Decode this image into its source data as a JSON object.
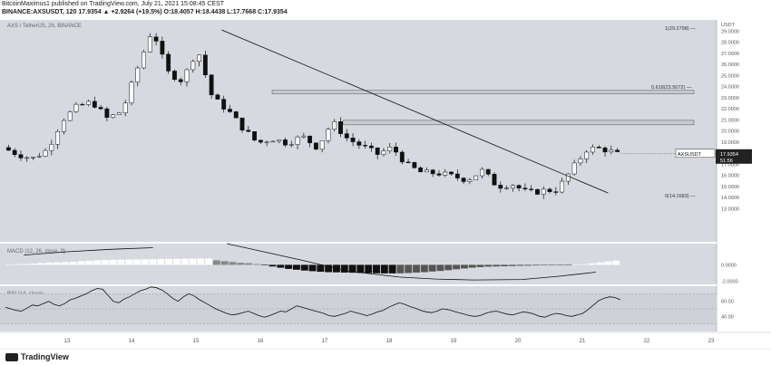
{
  "header": {
    "line1": "BitcoinMaximus1 published on TradingView.com, July 21, 2021 15:08:45 CEST",
    "line2": "BINANCE:AXSUSDT, 120  17.9354  ▲ +2.9264 (+19.5%)  O:18.4057  H:18.4438  L:17.7668  C:17.9354"
  },
  "chart_data": [
    {
      "type": "candlestick",
      "title": "AXS / TetherUS, 2h, BINANCE",
      "ylabel": "USDT",
      "ylim": [
        10.0,
        30.0
      ],
      "grid": false,
      "x_tick_labels": [
        "13",
        "14",
        "15",
        "16",
        "17",
        "18",
        "19",
        "20",
        "21",
        "22",
        "23"
      ],
      "y_tick_labels": [
        "29.0000",
        "28.0000",
        "27.0000",
        "26.0000",
        "25.0000",
        "24.0000",
        "23.0000",
        "22.0000",
        "21.0000",
        "20.0000",
        "19.0000",
        "18.0000",
        "17.0000",
        "16.0000",
        "15.0000",
        "14.0000",
        "13.0000"
      ],
      "price_path": [
        18.5,
        17.9,
        17.5,
        18.3,
        21.0,
        22.2,
        22.6,
        21.1,
        21.8,
        25.6,
        29.2,
        25.3,
        24.5,
        27.4,
        23.0,
        21.9,
        20.3,
        18.9,
        19.3,
        18.9,
        19.5,
        18.5,
        20.8,
        19.3,
        18.6,
        17.9,
        18.5,
        16.9,
        16.2,
        16.2,
        15.9,
        15.6,
        16.4,
        15.0,
        15.2,
        14.4,
        14.6,
        14.7,
        16.6,
        18.4,
        18.4,
        17.9
      ],
      "trendline": {
        "from": [
          15.4,
          29.1
        ],
        "to": [
          21.4,
          14.4
        ]
      },
      "resistance_zones": [
        {
          "label": "0.618(23.5072)",
          "low": 23.35,
          "high": 23.65
        },
        {
          "label": "",
          "low": 20.55,
          "high": 20.95
        }
      ],
      "fib_levels": [
        {
          "label": "1(29.2798)",
          "value": 29.2798
        },
        {
          "label": "0(14.1683)",
          "value": 14.1683
        }
      ],
      "last_price": {
        "symbol": "AXSUSDT",
        "value": "17.9354",
        "countdown": "51:56"
      }
    },
    {
      "type": "bar",
      "title": "MACD (12, 26, close, 9)",
      "y_tick_labels": [
        "0.0000",
        "-2.0000"
      ],
      "ylim": [
        -2.4,
        2.6
      ],
      "histogram": [
        0.05,
        0.08,
        0.1,
        0.15,
        0.22,
        0.28,
        0.3,
        0.35,
        0.4,
        0.45,
        0.5,
        0.55,
        0.6,
        0.62,
        0.64,
        0.65,
        0.66,
        0.68,
        0.7,
        0.72,
        0.73,
        0.74,
        0.75,
        0.76,
        0.77,
        0.78,
        0.55,
        0.45,
        0.35,
        0.25,
        0.2,
        0.1,
        -0.05,
        -0.2,
        -0.35,
        -0.5,
        -0.6,
        -0.7,
        -0.78,
        -0.85,
        -0.9,
        -0.92,
        -0.95,
        -0.97,
        -1.0,
        -1.02,
        -1.04,
        -1.05,
        -1.05,
        -1.04,
        -1.0,
        -0.95,
        -0.9,
        -0.82,
        -0.75,
        -0.66,
        -0.55,
        -0.45,
        -0.35,
        -0.28,
        -0.22,
        -0.2,
        -0.18,
        -0.15,
        -0.12,
        -0.1,
        -0.08,
        -0.06,
        -0.05,
        -0.04,
        -0.02,
        0.0,
        0.08,
        0.18,
        0.3,
        0.42,
        0.52
      ],
      "signal_line_segments": [
        [
          [
            0.03,
            1.2
          ],
          [
            0.1,
            1.6
          ],
          [
            0.17,
            1.9
          ],
          [
            0.24,
            2.1
          ]
        ],
        [
          [
            0.36,
            2.6
          ],
          [
            0.42,
            1.6
          ],
          [
            0.48,
            0.6
          ],
          [
            0.56,
            -0.8
          ],
          [
            0.64,
            -1.5
          ],
          [
            0.7,
            -1.75
          ],
          [
            0.76,
            -1.85
          ],
          [
            0.84,
            -1.8
          ],
          [
            0.9,
            -1.4
          ],
          [
            0.96,
            -0.9
          ]
        ]
      ]
    },
    {
      "type": "line",
      "title": "RSI (14, close)",
      "y_tick_labels": [
        "60.00",
        "40.00"
      ],
      "ylim": [
        20,
        80
      ],
      "levels": [
        70,
        50,
        30
      ],
      "values": [
        52,
        50,
        48,
        47,
        51,
        55,
        54,
        57,
        60,
        56,
        54,
        57,
        62,
        64,
        67,
        70,
        74,
        77,
        76,
        68,
        60,
        58,
        63,
        66,
        70,
        74,
        76,
        79,
        78,
        75,
        70,
        64,
        60,
        66,
        70,
        67,
        62,
        58,
        54,
        50,
        47,
        44,
        42,
        43,
        45,
        47,
        44,
        41,
        39,
        41,
        44,
        47,
        46,
        50,
        54,
        52,
        50,
        48,
        46,
        44,
        41,
        40,
        42,
        44,
        47,
        45,
        43,
        41,
        43,
        46,
        48,
        52,
        55,
        58,
        56,
        53,
        51,
        48,
        46,
        45,
        47,
        50,
        49,
        47,
        45,
        43,
        41,
        40,
        41,
        44,
        46,
        47,
        45,
        43,
        42,
        44,
        46,
        45,
        43,
        40,
        39,
        42,
        44,
        43,
        41,
        40,
        42,
        44,
        49,
        55,
        61,
        64,
        66,
        65,
        62
      ]
    }
  ]
}
